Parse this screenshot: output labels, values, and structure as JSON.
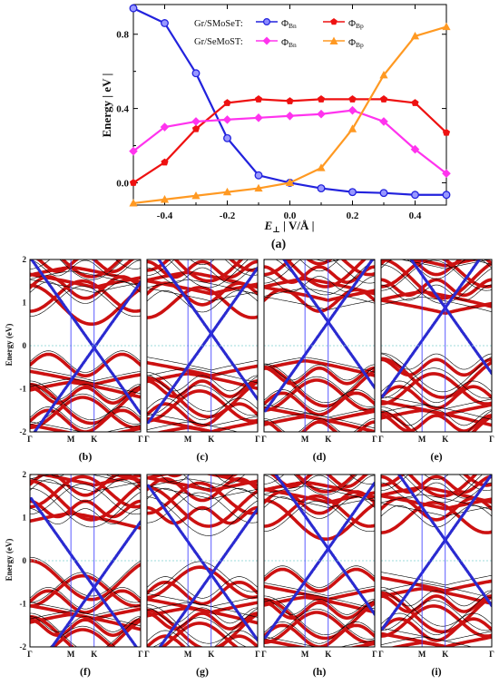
{
  "panel_a": {
    "label": "(a)",
    "xlabel_main": "E",
    "xlabel_sub": "⊥",
    "xlabel_unit": " | V/Å |",
    "ylabel": "Energy | eV |",
    "legend": {
      "row1_label": "Gr/SMoSeT:",
      "row2_label": "Gr/SeMoST:",
      "phi": "Φ",
      "sub_bn": "Bn",
      "sub_bp": "Bp"
    }
  },
  "band_panels": {
    "ylabel": "Energy (eV)",
    "yticks": [
      "2",
      "1",
      "0",
      "-1",
      "-2"
    ],
    "kpoints": [
      "Γ",
      "M",
      "K",
      "Γ"
    ],
    "labels": [
      "(b)",
      "(c)",
      "(d)",
      "(e)",
      "(f)",
      "(g)",
      "(h)",
      "(i)"
    ]
  },
  "colors": {
    "bn_1": "#2222dd",
    "bp_1": "#ee1111",
    "bn_2": "#ff33ee",
    "bp_2": "#ff9922",
    "band_red": "#cc1111",
    "band_blue": "#2a2ad0"
  },
  "chart_data": [
    {
      "type": "line",
      "xlabel": "E⊥ | V/Å |",
      "ylabel": "Energy | eV |",
      "xlim": [
        -0.5,
        0.5
      ],
      "ylim": [
        -0.12,
        0.96
      ],
      "xticks": [
        -0.4,
        -0.2,
        0.0,
        0.2,
        0.4
      ],
      "yticks": [
        0.0,
        0.4,
        0.8
      ],
      "x": [
        -0.5,
        -0.4,
        -0.3,
        -0.2,
        -0.1,
        0.0,
        0.1,
        0.2,
        0.3,
        0.4,
        0.5
      ],
      "legend_position": "top-right",
      "series": [
        {
          "name": "Gr/SMoSeT: Φ_Bn",
          "color": "#2222dd",
          "marker": "circle",
          "values": [
            0.94,
            0.86,
            0.59,
            0.24,
            0.04,
            0.0,
            -0.03,
            -0.05,
            -0.055,
            -0.065,
            -0.065
          ]
        },
        {
          "name": "Gr/SMoSeT: Φ_Bp",
          "color": "#ee1111",
          "marker": "pentagon",
          "values": [
            0.0,
            0.11,
            0.29,
            0.43,
            0.45,
            0.44,
            0.45,
            0.45,
            0.45,
            0.43,
            0.27
          ]
        },
        {
          "name": "Gr/SeMoST: Φ_Bn",
          "color": "#ff33ee",
          "marker": "diamond",
          "values": [
            0.17,
            0.3,
            0.33,
            0.34,
            0.35,
            0.36,
            0.37,
            0.39,
            0.33,
            0.18,
            0.05
          ]
        },
        {
          "name": "Gr/SeMoST: Φ_Bp",
          "color": "#ff9922",
          "marker": "triangle",
          "values": [
            -0.11,
            -0.09,
            -0.07,
            -0.05,
            -0.03,
            0.0,
            0.08,
            0.29,
            0.58,
            0.79,
            0.84
          ]
        }
      ]
    },
    {
      "type": "line",
      "panels": [
        "(b)",
        "(c)",
        "(d)",
        "(e)",
        "(f)",
        "(g)",
        "(h)",
        "(i)"
      ],
      "ylabel": "Energy (eV)",
      "ylim": [
        -2,
        2
      ],
      "xticks": [
        "Γ",
        "M",
        "K",
        "Γ"
      ],
      "dirac_cone_shift_eV": [
        -0.05,
        0.28,
        0.55,
        0.88,
        -0.62,
        -0.32,
        0.28,
        0.48
      ]
    }
  ]
}
